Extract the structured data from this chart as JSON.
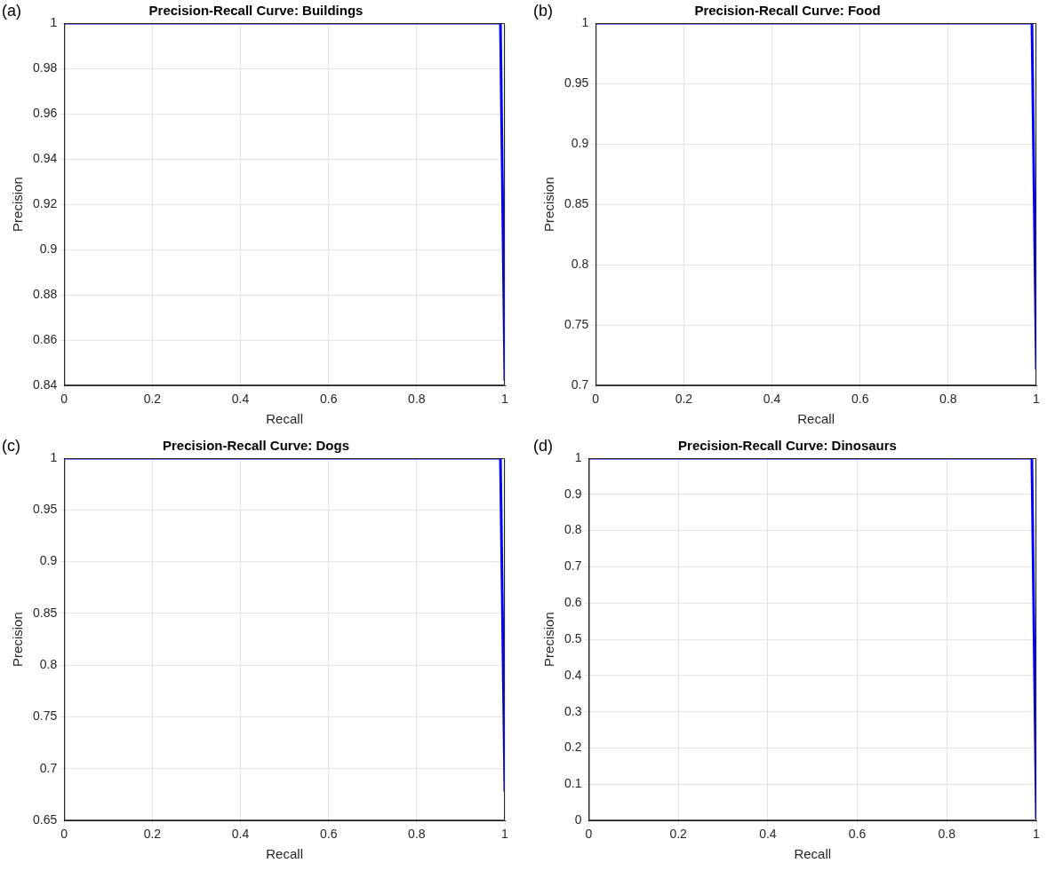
{
  "chart_data": [
    {
      "type": "line",
      "title": "Precision-Recall Curve: Buildings",
      "xlabel": "Recall",
      "ylabel": "Precision",
      "annotations": [
        "(a)"
      ],
      "x": [
        0,
        0.99,
        1
      ],
      "series": [
        {
          "color": "#0000ff",
          "values": [
            1,
            1,
            0.842
          ]
        }
      ],
      "xlim": [
        0,
        1
      ],
      "xticks": [
        0,
        0.2,
        0.4,
        0.6,
        0.8,
        1
      ],
      "ylim": [
        0.84,
        1
      ],
      "yticks": [
        0.84,
        0.86,
        0.88,
        0.9,
        0.92,
        0.94,
        0.96,
        0.98,
        1
      ],
      "grid": true,
      "marker": "none",
      "line_style": "solid"
    },
    {
      "type": "line",
      "title": "Precision-Recall Curve: Food",
      "xlabel": "Recall",
      "ylabel": "Precision",
      "annotations": [
        "(b)"
      ],
      "x": [
        0,
        0.99,
        1
      ],
      "series": [
        {
          "color": "#0000ff",
          "values": [
            1,
            1,
            0.713
          ]
        }
      ],
      "xlim": [
        0,
        1
      ],
      "xticks": [
        0,
        0.2,
        0.4,
        0.6,
        0.8,
        1
      ],
      "ylim": [
        0.7,
        1
      ],
      "yticks": [
        0.7,
        0.75,
        0.8,
        0.85,
        0.9,
        0.95,
        1
      ],
      "grid": true,
      "marker": "none",
      "line_style": "solid"
    },
    {
      "type": "line",
      "title": "Precision-Recall Curve: Dogs",
      "xlabel": "Recall",
      "ylabel": "Precision",
      "annotations": [
        "(c)"
      ],
      "x": [
        0,
        0.99,
        1
      ],
      "series": [
        {
          "color": "#0000ff",
          "values": [
            1,
            1,
            0.678
          ]
        }
      ],
      "xlim": [
        0,
        1
      ],
      "xticks": [
        0,
        0.2,
        0.4,
        0.6,
        0.8,
        1
      ],
      "ylim": [
        0.65,
        1
      ],
      "yticks": [
        0.65,
        0.7,
        0.75,
        0.8,
        0.85,
        0.9,
        0.95,
        1
      ],
      "grid": true,
      "marker": "none",
      "line_style": "solid"
    },
    {
      "type": "line",
      "title": "Precision-Recall Curve: Dinosaurs",
      "xlabel": "Recall",
      "ylabel": "Precision",
      "annotations": [
        "(d)"
      ],
      "x": [
        0,
        0.99,
        1
      ],
      "series": [
        {
          "color": "#0000ff",
          "values": [
            1,
            1,
            0.005
          ]
        }
      ],
      "xlim": [
        0,
        1
      ],
      "xticks": [
        0,
        0.2,
        0.4,
        0.6,
        0.8,
        1
      ],
      "ylim": [
        0,
        1
      ],
      "yticks": [
        0,
        0.1,
        0.2,
        0.3,
        0.4,
        0.5,
        0.6,
        0.7,
        0.8,
        0.9,
        1
      ],
      "grid": true,
      "marker": "none",
      "line_style": "solid"
    }
  ]
}
